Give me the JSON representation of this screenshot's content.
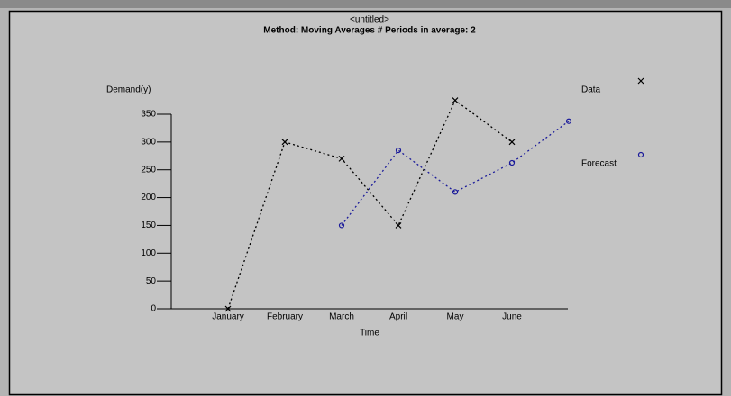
{
  "chart_data": {
    "type": "line",
    "title": "<untitled>",
    "subtitle": "Method: Moving Averages  # Periods in average: 2",
    "y_label": "Demand(y)",
    "x_label": "Time",
    "categories": [
      "January",
      "February",
      "March",
      "April",
      "May",
      "June",
      null
    ],
    "series": [
      {
        "name": "Data",
        "color": "#000000",
        "marker": "x",
        "values": [
          0,
          300,
          270,
          150,
          375,
          300,
          null
        ]
      },
      {
        "name": "Forecast",
        "color": "#1a1a9a",
        "marker": "o",
        "values": [
          null,
          null,
          150,
          285,
          210,
          262.5,
          337.5
        ]
      }
    ],
    "ylim": [
      0,
      350
    ],
    "yticks": [
      0,
      50,
      100,
      150,
      200,
      250,
      300,
      350
    ]
  }
}
